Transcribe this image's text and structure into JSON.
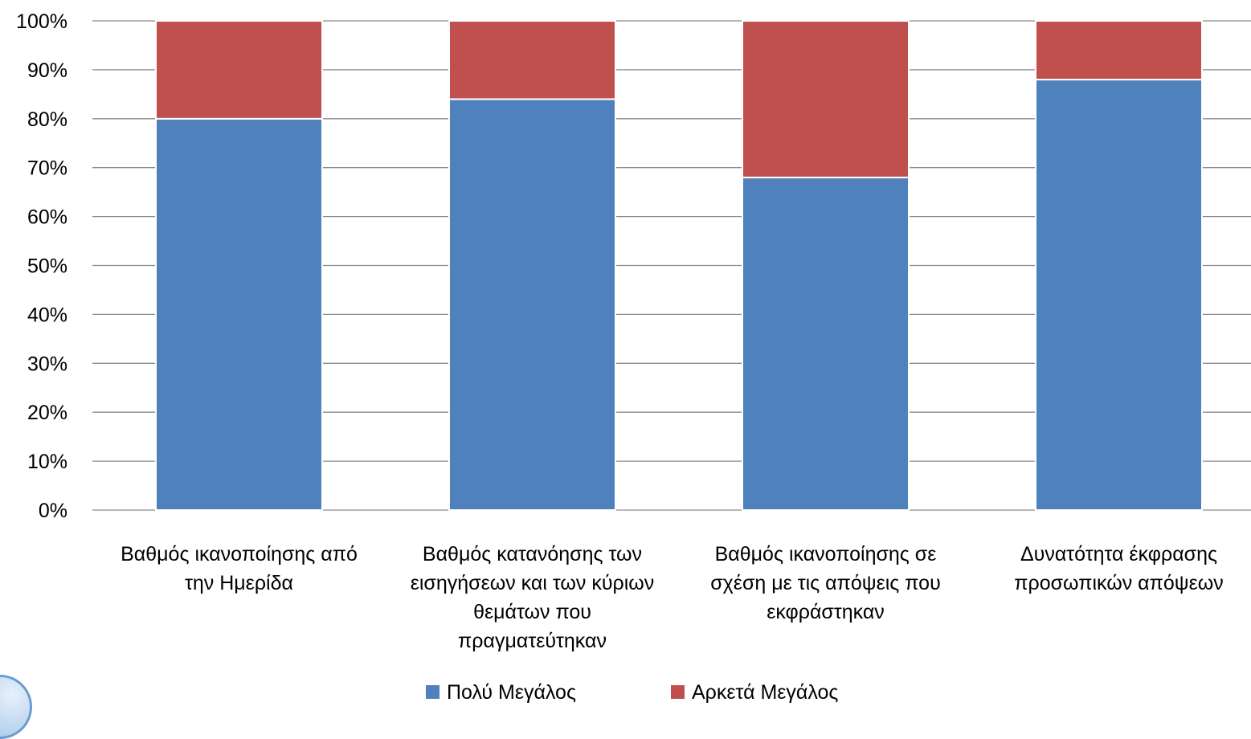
{
  "chart_data": {
    "type": "bar",
    "stacked": "percent",
    "title": "",
    "xlabel": "",
    "ylabel": "",
    "ylim": [
      0,
      100
    ],
    "y_tick_labels": [
      "0%",
      "10%",
      "20%",
      "30%",
      "40%",
      "50%",
      "60%",
      "70%",
      "80%",
      "90%",
      "100%"
    ],
    "categories": [
      [
        "Βαθμός ικανοποίησης από",
        "την Ημερίδα"
      ],
      [
        "Βαθμός κατανόησης των",
        "εισηγήσεων και των κύριων",
        "θεμάτων που",
        "πραγματεύτηκαν"
      ],
      [
        "Βαθμός ικανοποίησης σε",
        "σχέση με τις απόψεις που",
        "εκφράστηκαν"
      ],
      [
        "Δυνατότητα έκφρασης",
        "προσωπικών απόψεων"
      ]
    ],
    "series": [
      {
        "name": "Πολύ Μεγάλος",
        "color": "#4f81bd",
        "values": [
          80,
          84,
          68,
          88
        ]
      },
      {
        "name": "Αρκετά Μεγάλος",
        "color": "#c0504d",
        "values": [
          20,
          16,
          32,
          12
        ]
      }
    ],
    "grid": true,
    "legend_position": "bottom"
  }
}
